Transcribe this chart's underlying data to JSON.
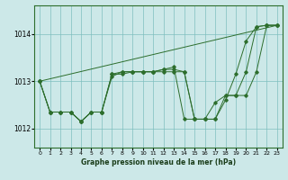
{
  "title": "Graphe pression niveau de la mer (hPa)",
  "bg_color": "#cce8e8",
  "grid_color": "#7fbfbf",
  "line_color": "#2d6e2d",
  "xlim": [
    -0.5,
    23.5
  ],
  "ylim": [
    1011.6,
    1014.6
  ],
  "yticks": [
    1012,
    1013,
    1014
  ],
  "xticks": [
    0,
    1,
    2,
    3,
    4,
    5,
    6,
    7,
    8,
    9,
    10,
    11,
    12,
    13,
    14,
    15,
    16,
    17,
    18,
    19,
    20,
    21,
    22,
    23
  ],
  "series": [
    {
      "x": [
        0,
        1,
        2,
        3,
        4,
        5,
        6,
        7,
        8,
        9,
        10,
        11,
        12,
        13,
        14,
        15,
        16,
        17,
        18,
        19,
        20,
        21,
        22,
        23
      ],
      "y": [
        1013.0,
        1012.35,
        1012.35,
        1012.35,
        1012.15,
        1012.35,
        1012.35,
        1013.15,
        1013.15,
        1013.2,
        1013.2,
        1013.2,
        1013.25,
        1013.25,
        1013.2,
        1012.2,
        1012.2,
        1012.2,
        1012.6,
        1013.15,
        1013.85,
        1014.15,
        1014.18,
        1014.18
      ]
    },
    {
      "x": [
        0,
        1,
        2,
        3,
        4,
        5,
        6,
        7,
        8,
        9,
        10,
        11,
        12,
        13,
        14,
        15,
        16,
        17,
        18,
        19,
        20,
        21,
        22,
        23
      ],
      "y": [
        1013.0,
        1012.35,
        1012.35,
        1012.35,
        1012.15,
        1012.35,
        1012.35,
        1013.15,
        1013.2,
        1013.2,
        1013.2,
        1013.2,
        1013.25,
        1013.3,
        1012.2,
        1012.2,
        1012.2,
        1012.55,
        1012.7,
        1012.7,
        1013.2,
        1014.15,
        1014.18,
        1014.18
      ]
    },
    {
      "x": [
        0,
        1,
        2,
        3,
        4,
        5,
        6,
        7,
        8,
        9,
        10,
        11,
        12,
        13,
        14,
        15,
        16,
        17,
        18,
        19,
        20,
        21,
        22,
        23
      ],
      "y": [
        1013.0,
        1012.35,
        1012.35,
        1012.35,
        1012.15,
        1012.35,
        1012.35,
        1013.1,
        1013.2,
        1013.2,
        1013.2,
        1013.2,
        1013.2,
        1013.2,
        1013.2,
        1012.2,
        1012.2,
        1012.2,
        1012.7,
        1012.7,
        1012.7,
        1013.2,
        1014.18,
        1014.18
      ]
    },
    {
      "x": [
        0,
        23
      ],
      "y": [
        1013.0,
        1014.18
      ],
      "no_marker": true
    }
  ]
}
